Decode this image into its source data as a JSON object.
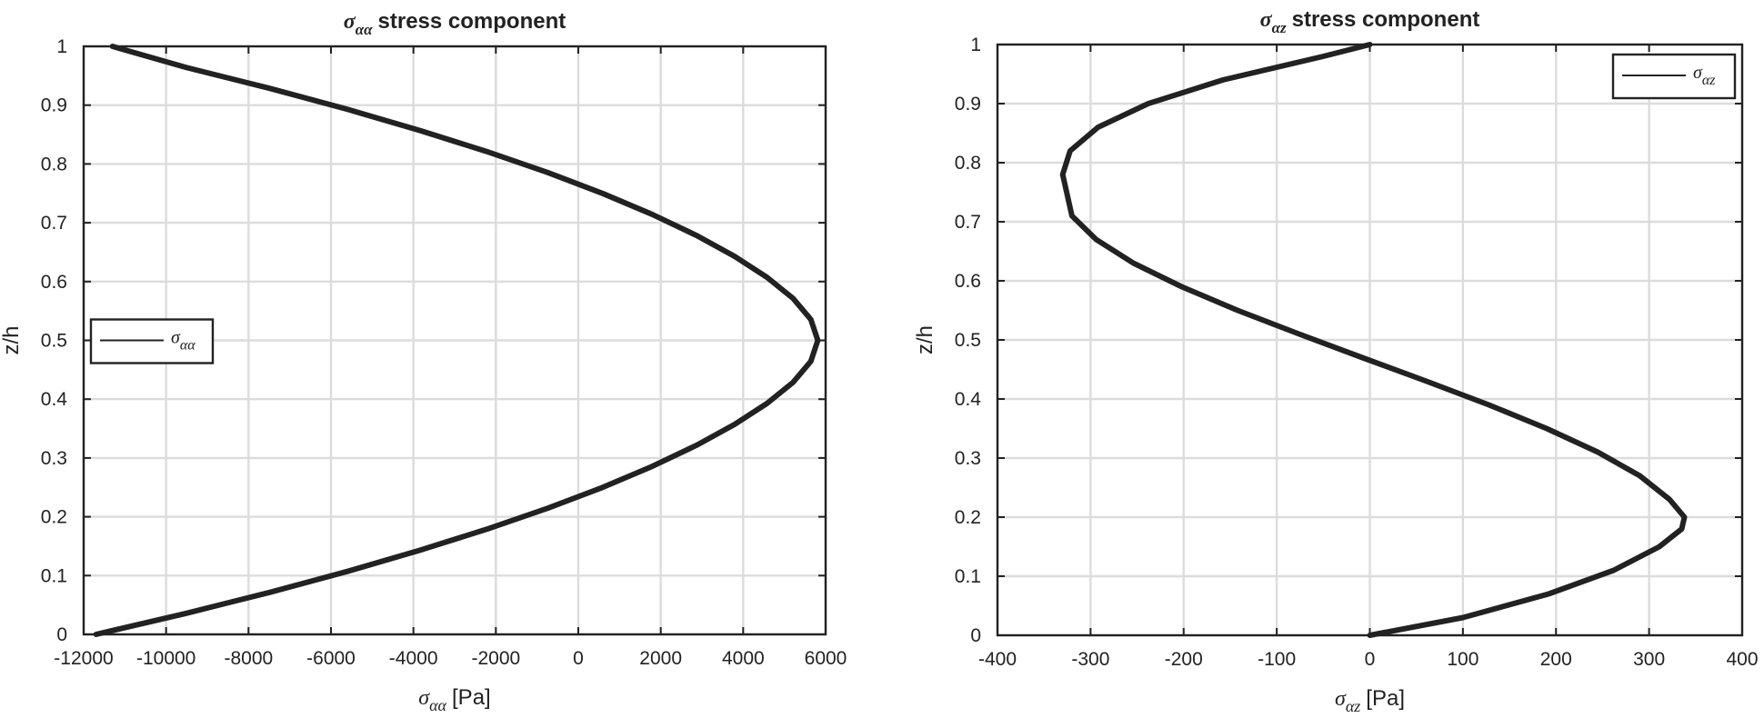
{
  "chart_data": [
    {
      "type": "line",
      "title_symbol": "σ",
      "title_subscript": "αα",
      "title_text": "stress component",
      "xlabel_symbol": "σ",
      "xlabel_subscript": "αα",
      "xlabel_unit": "[Pa]",
      "ylabel": "z/h",
      "xlim": [
        -12000,
        6000
      ],
      "ylim": [
        0,
        1
      ],
      "xticks": [
        -12000,
        -10000,
        -8000,
        -6000,
        -4000,
        -2000,
        0,
        2000,
        4000,
        6000
      ],
      "yticks": [
        0,
        0.1,
        0.2,
        0.3,
        0.4,
        0.5,
        0.6,
        0.7,
        0.8,
        0.9,
        1
      ],
      "grid": true,
      "legend_position": "middle-left",
      "series": [
        {
          "legend_symbol": "σ",
          "legend_subscript": "αα",
          "color": "#222222",
          "x": [
            -11700,
            -9520,
            -7490,
            -5600,
            -3850,
            -2230,
            -750,
            590,
            1790,
            2860,
            3790,
            4580,
            5210,
            5640,
            5810,
            5640,
            5210,
            4580,
            3790,
            2860,
            1790,
            590,
            -750,
            -2230,
            -3850,
            -5600,
            -7490,
            -9520,
            -11300
          ],
          "y": [
            0,
            0.0357,
            0.0714,
            0.1071,
            0.1429,
            0.1786,
            0.2143,
            0.25,
            0.2857,
            0.3214,
            0.3571,
            0.3929,
            0.4286,
            0.4643,
            0.5,
            0.5357,
            0.5714,
            0.6071,
            0.6429,
            0.6786,
            0.7143,
            0.75,
            0.7857,
            0.8214,
            0.8571,
            0.8929,
            0.9286,
            0.9643,
            1
          ]
        }
      ]
    },
    {
      "type": "line",
      "title_symbol": "σ",
      "title_subscript": "αz",
      "title_text": "stress component",
      "xlabel_symbol": "σ",
      "xlabel_subscript": "αz",
      "xlabel_unit": "[Pa]",
      "ylabel": "z/h",
      "xlim": [
        -400,
        400
      ],
      "ylim": [
        0,
        1
      ],
      "xticks": [
        -400,
        -300,
        -200,
        -100,
        0,
        100,
        200,
        300,
        400
      ],
      "yticks": [
        0,
        0.1,
        0.2,
        0.3,
        0.4,
        0.5,
        0.6,
        0.7,
        0.8,
        0.9,
        1
      ],
      "grid": true,
      "legend_position": "top-right",
      "series": [
        {
          "legend_symbol": "σ",
          "legend_subscript": "αz",
          "color": "#222222",
          "x": [
            0,
            100,
            192,
            262,
            311,
            335,
            338,
            322,
            290,
            245,
            190,
            128,
            61,
            -8,
            -76,
            -142,
            -202,
            -254,
            -294,
            -320,
            -330,
            -322,
            -292,
            -238,
            -158,
            -50,
            0
          ],
          "y": [
            0,
            0.03,
            0.07,
            0.11,
            0.15,
            0.18,
            0.2,
            0.23,
            0.27,
            0.31,
            0.35,
            0.39,
            0.43,
            0.47,
            0.51,
            0.55,
            0.59,
            0.63,
            0.67,
            0.71,
            0.78,
            0.82,
            0.86,
            0.9,
            0.94,
            0.98,
            1
          ]
        }
      ]
    }
  ]
}
